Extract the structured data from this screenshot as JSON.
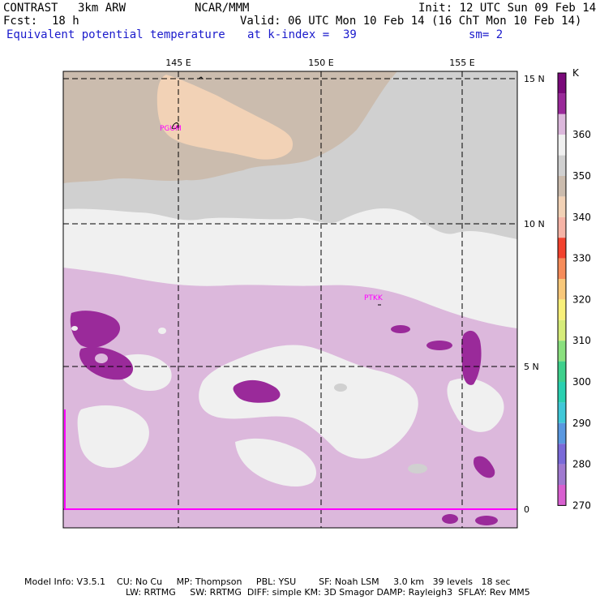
{
  "header": {
    "model": "CONTRAST",
    "domain_res": "3km ARW",
    "center": "NCAR/MMM",
    "init": "Init: 12 UTC Sun 09 Feb 14",
    "fcst_label": "Fcst:",
    "fcst_value": "18 h",
    "valid": "Valid: 06 UTC Mon 10 Feb 14 (16 ChT Mon 10 Feb 14)",
    "field": "Equivalent potential temperature",
    "level": "at k-index =  39",
    "smooth": "sm= 2"
  },
  "map": {
    "lon_labels": [
      "145 E",
      "150 E",
      "155 E"
    ],
    "lat_labels": [
      "15 N",
      "10 N",
      "5 N",
      "0"
    ],
    "stations": [
      "PGUM",
      "PTKK"
    ]
  },
  "colorbar": {
    "unit": "K",
    "labels": [
      "360",
      "350",
      "340",
      "330",
      "320",
      "310",
      "300",
      "290",
      "280",
      "270"
    ],
    "colors": [
      "#7a0a7a",
      "#9a2a9a",
      "#dcb8dc",
      "#f0f0f0",
      "#d0d0d0",
      "#cbbcae",
      "#f2d2b6",
      "#f6b4a6",
      "#f2422e",
      "#f68c5a",
      "#f8c87a",
      "#f8f07a",
      "#d6ec7a",
      "#8ae07e",
      "#3ed08c",
      "#2ad0b0",
      "#40c8d8",
      "#5a98e0",
      "#7a6ad8",
      "#a07ad0",
      "#d860d0"
    ]
  },
  "footer": {
    "line1": "Model Info: V3.5.1    CU: No Cu     MP: Thompson     PBL: YSU        SF: Noah LSM     3.0 km   39 levels   18 sec",
    "line2": "LW: RRTMG     SW: RRTMG  DIFF: simple KM: 3D Smagor DAMP: Rayleigh3  SFLAY: Rev MM5"
  }
}
